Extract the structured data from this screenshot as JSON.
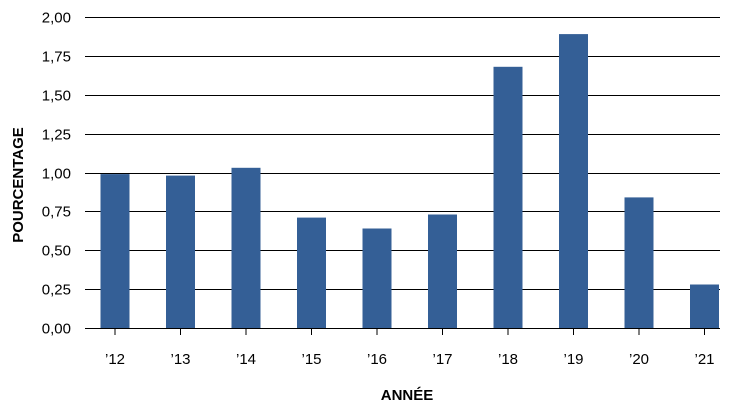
{
  "chart_data": {
    "type": "bar",
    "title": "",
    "xlabel": "ANNÉE",
    "ylabel": "POURCENTAGE",
    "categories": [
      "’12",
      "’13",
      "’14",
      "’15",
      "’16",
      "’17",
      "’18",
      "’19",
      "’20",
      "’21"
    ],
    "values": [
      0.99,
      0.98,
      1.03,
      0.71,
      0.64,
      0.73,
      1.68,
      1.89,
      0.84,
      0.28
    ],
    "ylim": [
      0,
      2
    ],
    "yticks": [
      0,
      0.25,
      0.5,
      0.75,
      1,
      1.25,
      1.5,
      1.75,
      2
    ],
    "ytick_labels": [
      "0,00",
      "0,25",
      "0,50",
      "0,75",
      "1,00",
      "1,25",
      "1,50",
      "1,75",
      "2,00"
    ],
    "grid": true,
    "legend": "none",
    "colors": {
      "bar": "#345f96",
      "grid": "#000000"
    }
  }
}
